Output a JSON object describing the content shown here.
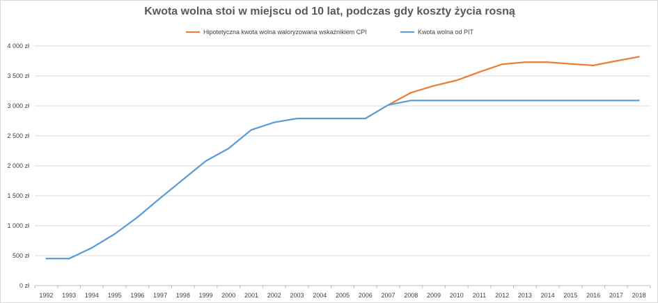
{
  "chart_data": {
    "type": "line",
    "title": "Kwota wolna stoi w miejscu od 10 lat, podczas gdy koszty życia rosną",
    "xlabel": "",
    "ylabel": "",
    "legend_position": "top",
    "grid": true,
    "x": [
      "1992",
      "1993",
      "1994",
      "1995",
      "1996",
      "1997",
      "1998",
      "1999",
      "2000",
      "2001",
      "2002",
      "2003",
      "2004",
      "2005",
      "2006",
      "2007",
      "2008",
      "2009",
      "2010",
      "2011",
      "2012",
      "2013",
      "2014",
      "2015",
      "2016",
      "2017",
      "2018"
    ],
    "ylim": [
      0,
      4000
    ],
    "yticks": [
      0,
      500,
      1000,
      1500,
      2000,
      2500,
      3000,
      3500,
      4000
    ],
    "ytick_labels": [
      "0 zł",
      "500 zł",
      "1 000 zł",
      "1 500 zł",
      "2 000 zł",
      "2 500 zł",
      "3 000 zł",
      "3 500 zł",
      "4 000 zł"
    ],
    "series": [
      {
        "name": "Hipotetyczna kwota wolna waloryzowana wskaźnikiem CPI",
        "color": "#ed7d31",
        "values": [
          null,
          null,
          null,
          null,
          null,
          null,
          null,
          null,
          null,
          null,
          null,
          null,
          null,
          null,
          null,
          3015,
          3220,
          3335,
          3425,
          3565,
          3695,
          3730,
          3730,
          3700,
          3675,
          3750,
          3820
        ]
      },
      {
        "name": "Kwota wolna od PIT",
        "color": "#5b9bd5",
        "values": [
          450,
          450,
          630,
          860,
          1140,
          1460,
          1770,
          2080,
          2290,
          2600,
          2725,
          2790,
          2790,
          2790,
          2790,
          3015,
          3090,
          3090,
          3090,
          3090,
          3090,
          3090,
          3090,
          3090,
          3090,
          3090,
          3090
        ]
      }
    ]
  },
  "colors": {
    "grid": "#d9d9d9",
    "axis": "#bfbfbf",
    "text": "#404040",
    "title": "#595959"
  }
}
